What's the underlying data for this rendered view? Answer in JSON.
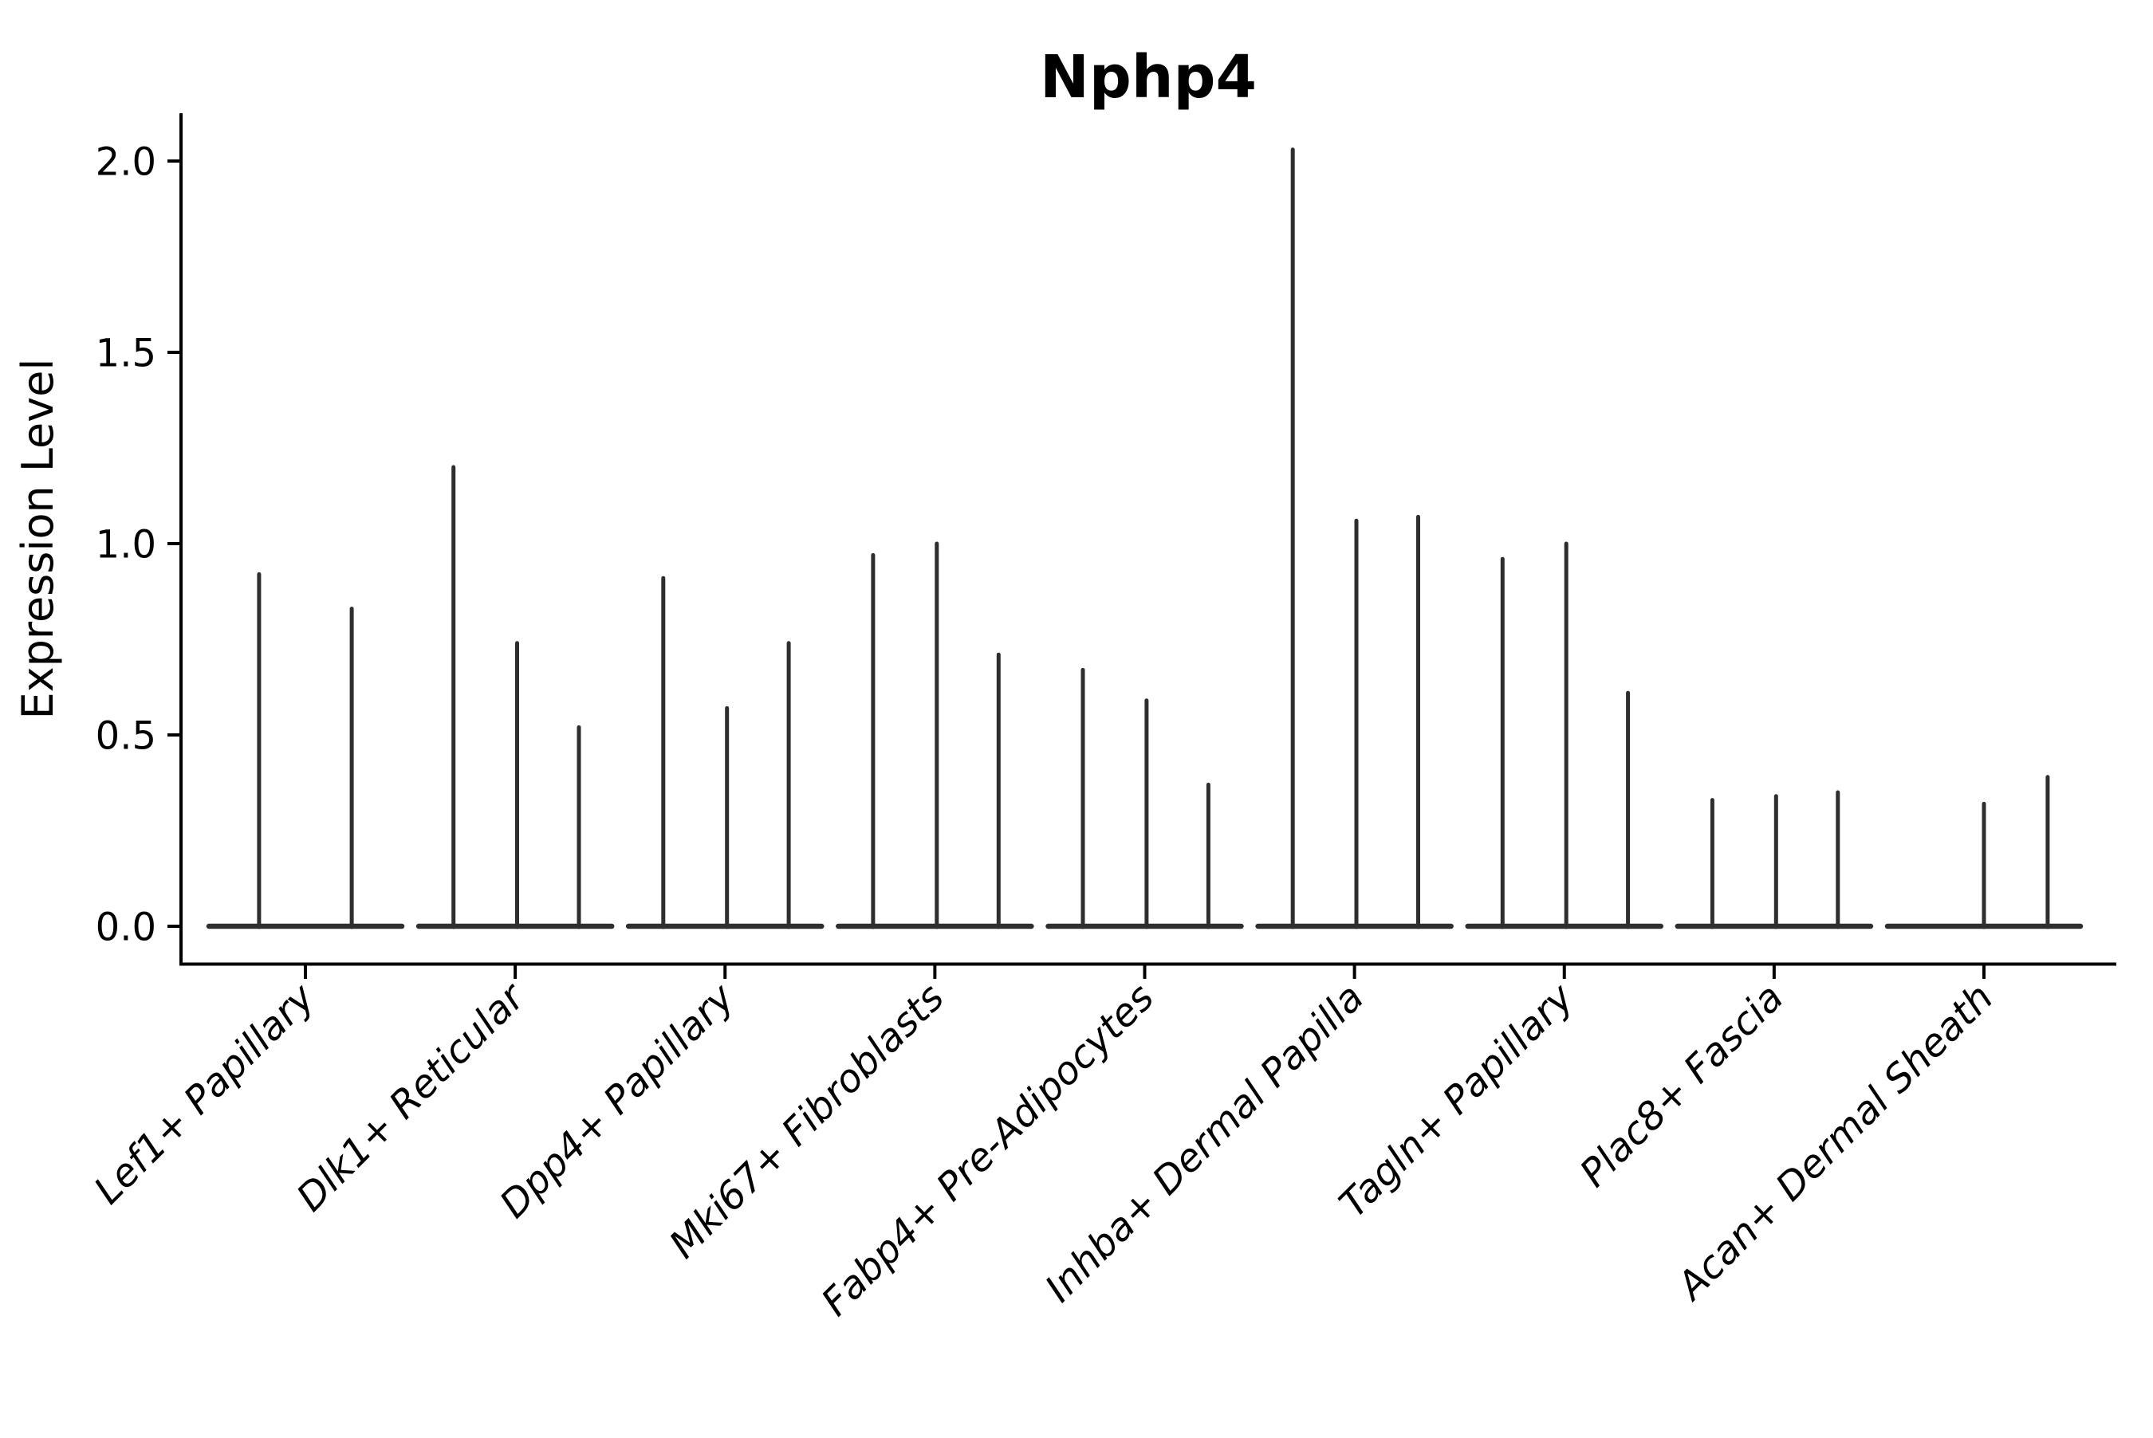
{
  "chart_data": {
    "type": "violin",
    "title": "Nphp4",
    "ylabel": "Expression Level",
    "xlabel": "",
    "categories": [
      "Lef1+ Papillary",
      "Dlk1+ Reticular",
      "Dpp4+ Papillary",
      "Mki67+ Fibroblasts",
      "Fabp4+ Pre-Adipocytes",
      "Inhba+ Dermal Papilla",
      "Tagln+ Papillary",
      "Plac8+ Fascia",
      "Acan+ Dermal Sheath"
    ],
    "series": [
      {
        "category": "Lef1+ Papillary",
        "spikes": [
          {
            "pos": 0.26,
            "value": 0.92
          },
          {
            "pos": 0.74,
            "value": 0.83
          }
        ]
      },
      {
        "category": "Dlk1+ Reticular",
        "spikes": [
          {
            "pos": 0.18,
            "value": 1.2
          },
          {
            "pos": 0.51,
            "value": 0.74
          },
          {
            "pos": 0.83,
            "value": 0.52
          }
        ]
      },
      {
        "category": "Dpp4+ Papillary",
        "spikes": [
          {
            "pos": 0.18,
            "value": 0.91
          },
          {
            "pos": 0.51,
            "value": 0.57
          },
          {
            "pos": 0.83,
            "value": 0.74
          }
        ]
      },
      {
        "category": "Mki67+ Fibroblasts",
        "spikes": [
          {
            "pos": 0.18,
            "value": 0.97
          },
          {
            "pos": 0.51,
            "value": 1.0
          },
          {
            "pos": 0.83,
            "value": 0.71
          }
        ]
      },
      {
        "category": "Fabp4+ Pre-Adipocytes",
        "spikes": [
          {
            "pos": 0.18,
            "value": 0.67
          },
          {
            "pos": 0.51,
            "value": 0.59
          },
          {
            "pos": 0.83,
            "value": 0.37
          }
        ]
      },
      {
        "category": "Inhba+ Dermal Papilla",
        "spikes": [
          {
            "pos": 0.18,
            "value": 2.03
          },
          {
            "pos": 0.51,
            "value": 1.06
          },
          {
            "pos": 0.83,
            "value": 1.07
          }
        ]
      },
      {
        "category": "Tagln+ Papillary",
        "spikes": [
          {
            "pos": 0.18,
            "value": 0.96
          },
          {
            "pos": 0.51,
            "value": 1.0
          },
          {
            "pos": 0.83,
            "value": 0.61
          }
        ]
      },
      {
        "category": "Plac8+ Fascia",
        "spikes": [
          {
            "pos": 0.18,
            "value": 0.33
          },
          {
            "pos": 0.51,
            "value": 0.34
          },
          {
            "pos": 0.83,
            "value": 0.35
          }
        ]
      },
      {
        "category": "Acan+ Dermal Sheath",
        "spikes": [
          {
            "pos": 0.5,
            "value": 0.32
          },
          {
            "pos": 0.83,
            "value": 0.39
          }
        ]
      }
    ],
    "baseline_value": 0.0,
    "yticks": [
      {
        "label": "0.0",
        "value": 0.0
      },
      {
        "label": "0.5",
        "value": 0.5
      },
      {
        "label": "1.0",
        "value": 1.0
      },
      {
        "label": "1.5",
        "value": 1.5
      },
      {
        "label": "2.0",
        "value": 2.0
      }
    ],
    "ylim": [
      -0.1,
      2.12
    ],
    "xtick_rotation_deg": 45,
    "grid": false,
    "legend": "none",
    "violin_width_frac": 0.92,
    "colors": {
      "violin_line": "#2e2e2e",
      "axis": "#000000",
      "text": "#000000",
      "background": "#ffffff"
    }
  }
}
